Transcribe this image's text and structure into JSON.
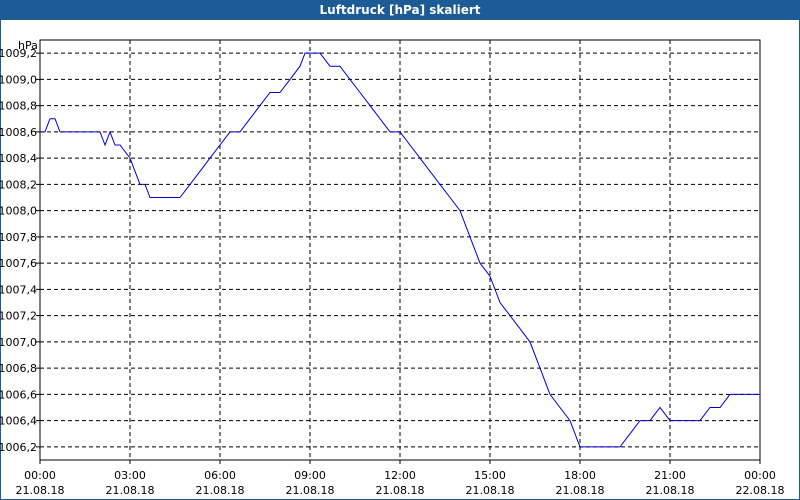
{
  "window": {
    "title": "Luftdruck [hPa] skaliert"
  },
  "colors": {
    "titlebar": "#1c5b95",
    "series": "#0000cc",
    "grid": "#000000"
  },
  "chart_data": {
    "type": "line",
    "title": "Luftdruck [hPa] skaliert",
    "ylabel": "hPa",
    "xlabel": "",
    "grid": true,
    "ylim": [
      1006.1,
      1009.3
    ],
    "xlim_hours": [
      0,
      24
    ],
    "y_ticks": [
      "1006,2",
      "1006,4",
      "1006,6",
      "1006,8",
      "1007,0",
      "1007,2",
      "1007,4",
      "1007,6",
      "1007,8",
      "1008,0",
      "1008,2",
      "1008,4",
      "1008,6",
      "1008,8",
      "1009,0",
      "1009,2"
    ],
    "y_tick_values": [
      1006.2,
      1006.4,
      1006.6,
      1006.8,
      1007.0,
      1007.2,
      1007.4,
      1007.6,
      1007.8,
      1008.0,
      1008.2,
      1008.4,
      1008.6,
      1008.8,
      1009.0,
      1009.2
    ],
    "x_ticks": [
      {
        "time": "00:00",
        "date": "21.08.18"
      },
      {
        "time": "03:00",
        "date": "21.08.18"
      },
      {
        "time": "06:00",
        "date": "21.08.18"
      },
      {
        "time": "09:00",
        "date": "21.08.18"
      },
      {
        "time": "12:00",
        "date": "21.08.18"
      },
      {
        "time": "15:00",
        "date": "21.08.18"
      },
      {
        "time": "18:00",
        "date": "21.08.18"
      },
      {
        "time": "21:00",
        "date": "21.08.18"
      },
      {
        "time": "00:00",
        "date": "22.08.18"
      }
    ],
    "series": [
      {
        "x": [
          "00:00",
          "00:10",
          "00:20",
          "00:30",
          "00:40",
          "01:00",
          "01:30",
          "02:00",
          "02:10",
          "02:20",
          "02:30",
          "02:40",
          "03:00",
          "03:10",
          "03:20",
          "03:30",
          "03:40",
          "04:00",
          "04:20",
          "04:40",
          "05:00",
          "05:20",
          "05:40",
          "06:00",
          "06:20",
          "06:40",
          "07:00",
          "07:20",
          "07:40",
          "08:00",
          "08:20",
          "08:40",
          "08:50",
          "09:00",
          "09:20",
          "09:40",
          "10:00",
          "10:20",
          "10:40",
          "11:00",
          "11:20",
          "11:40",
          "12:00",
          "12:20",
          "12:40",
          "13:00",
          "13:20",
          "13:40",
          "14:00",
          "14:20",
          "14:40",
          "15:00",
          "15:20",
          "15:40",
          "16:00",
          "16:20",
          "16:40",
          "17:00",
          "17:20",
          "17:40",
          "18:00",
          "18:20",
          "18:40",
          "19:00",
          "19:20",
          "19:40",
          "20:00",
          "20:20",
          "20:40",
          "21:00",
          "21:20",
          "21:40",
          "22:00",
          "22:20",
          "22:40",
          "23:00",
          "23:20",
          "23:40",
          "24:00"
        ],
        "y": [
          1008.6,
          1008.6,
          1008.7,
          1008.7,
          1008.6,
          1008.6,
          1008.6,
          1008.6,
          1008.5,
          1008.6,
          1008.5,
          1008.5,
          1008.4,
          1008.3,
          1008.2,
          1008.2,
          1008.1,
          1008.1,
          1008.1,
          1008.1,
          1008.2,
          1008.3,
          1008.4,
          1008.5,
          1008.6,
          1008.6,
          1008.7,
          1008.8,
          1008.9,
          1008.9,
          1009.0,
          1009.1,
          1009.2,
          1009.2,
          1009.2,
          1009.1,
          1009.1,
          1009.0,
          1008.9,
          1008.8,
          1008.7,
          1008.6,
          1008.6,
          1008.5,
          1008.4,
          1008.3,
          1008.2,
          1008.1,
          1008.0,
          1007.8,
          1007.6,
          1007.5,
          1007.3,
          1007.2,
          1007.1,
          1007.0,
          1006.8,
          1006.6,
          1006.5,
          1006.4,
          1006.2,
          1006.2,
          1006.2,
          1006.2,
          1006.2,
          1006.3,
          1006.4,
          1006.4,
          1006.5,
          1006.4,
          1006.4,
          1006.4,
          1006.4,
          1006.5,
          1006.5,
          1006.6,
          1006.6,
          1006.6,
          1006.6
        ]
      }
    ]
  }
}
